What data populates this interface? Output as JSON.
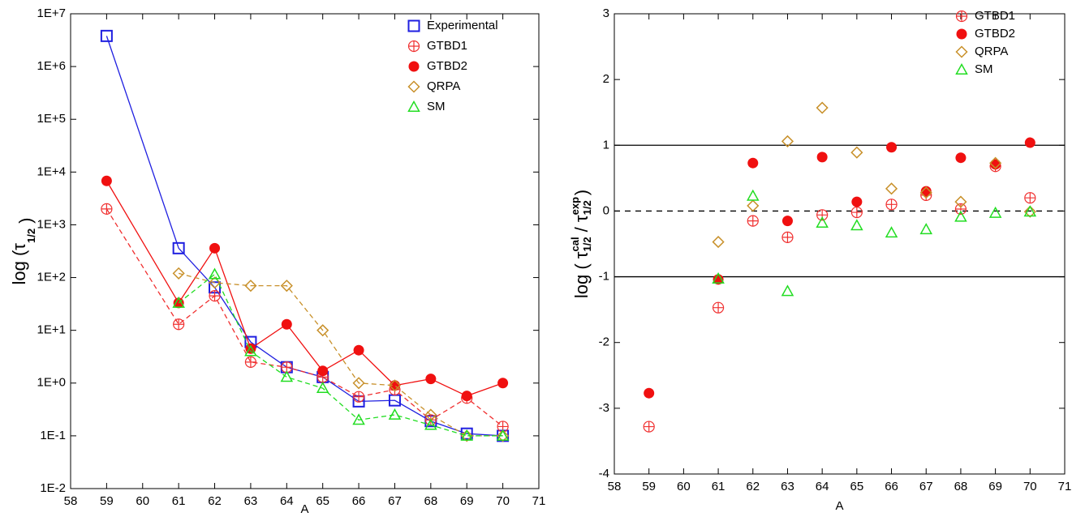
{
  "chart_data": [
    {
      "type": "line",
      "y_log": true,
      "y_label": [
        {
          "text": "log ("
        },
        {
          "text": "τ"
        },
        {
          "text": "1/2",
          "pos": "sub"
        },
        {
          "text": " )"
        }
      ],
      "x_label": "A",
      "x": [
        59,
        61,
        62,
        63,
        64,
        65,
        66,
        67,
        68,
        69,
        70
      ],
      "xlim": [
        58,
        71
      ],
      "xticks": [
        58,
        59,
        60,
        61,
        62,
        63,
        64,
        65,
        66,
        67,
        68,
        69,
        70,
        71
      ],
      "ylim": [
        0.01,
        10000000
      ],
      "yticks": [
        {
          "value": 0.01,
          "label": "1E-2"
        },
        {
          "value": 0.1,
          "label": "1E-1"
        },
        {
          "value": 1,
          "label": "1E+0"
        },
        {
          "value": 10,
          "label": "1E+1"
        },
        {
          "value": 100,
          "label": "1E+2"
        },
        {
          "value": 1000,
          "label": "1E+3"
        },
        {
          "value": 10000,
          "label": "1E+4"
        },
        {
          "value": 100000,
          "label": "1E+5"
        },
        {
          "value": 1000000,
          "label": "1E+6"
        },
        {
          "value": 10000000,
          "label": "1E+7"
        }
      ],
      "legend": "upper right",
      "series": [
        {
          "name": "Experimental",
          "color": "#1f1fe0",
          "marker": "square",
          "line": "solid",
          "values": [
            3800000,
            360,
            65,
            6,
            2,
            1.3,
            0.45,
            0.47,
            0.19,
            0.11,
            0.1
          ]
        },
        {
          "name": "GTBD1",
          "color": "#f03030",
          "marker": "circle-plus",
          "line": "dashed",
          "values": [
            2000,
            13,
            45,
            2.5,
            2,
            1.3,
            0.55,
            0.75,
            0.2,
            0.52,
            0.15
          ]
        },
        {
          "name": "GTBD2",
          "color": "#f01010",
          "marker": "filled-circle",
          "line": "solid",
          "values": [
            6800,
            33,
            360,
            4.5,
            13,
            1.7,
            4.2,
            0.9,
            1.2,
            0.57,
            1.0
          ]
        },
        {
          "name": "QRPA",
          "color": "#c8902a",
          "marker": "diamond",
          "line": "dashed",
          "values": [
            null,
            120,
            80,
            70,
            70,
            10,
            1.0,
            0.9,
            0.25,
            0.1,
            0.1
          ]
        },
        {
          "name": "SM",
          "color": "#22dd22",
          "marker": "triangle",
          "line": "dashed",
          "values": [
            null,
            33,
            115,
            4,
            1.3,
            0.8,
            0.2,
            0.25,
            0.16,
            0.1,
            0.1
          ]
        }
      ]
    },
    {
      "type": "scatter",
      "y_log": false,
      "y_label": [
        {
          "text": "log ( "
        },
        {
          "text": "τ"
        },
        {
          "text": "cal",
          "pos": "sup"
        },
        {
          "text": "1/2",
          "pos": "sub"
        },
        {
          "text": " / "
        },
        {
          "text": "τ"
        },
        {
          "text": "exp",
          "pos": "sup"
        },
        {
          "text": "1/2",
          "pos": "sub"
        },
        {
          "text": " )"
        }
      ],
      "x_label": "A",
      "x": [
        59,
        61,
        62,
        63,
        64,
        65,
        66,
        67,
        68,
        69,
        70
      ],
      "xlim": [
        58,
        71
      ],
      "xticks": [
        58,
        59,
        60,
        61,
        62,
        63,
        64,
        65,
        66,
        67,
        68,
        69,
        70,
        71
      ],
      "ylim": [
        -4,
        3
      ],
      "yticks": [
        -4,
        -3,
        -2,
        -1,
        0,
        1,
        2,
        3
      ],
      "hlines": [
        {
          "value": 1,
          "dash": false
        },
        {
          "value": 0,
          "dash": true
        },
        {
          "value": -1,
          "dash": false
        }
      ],
      "legend": "upper right",
      "series": [
        {
          "name": "GTBD1",
          "color": "#f03030",
          "marker": "circle-plus",
          "line": "none",
          "values": [
            -3.28,
            -1.47,
            -0.15,
            -0.4,
            -0.06,
            -0.02,
            0.1,
            0.24,
            0.03,
            0.68,
            0.2
          ]
        },
        {
          "name": "GTBD2",
          "color": "#f01010",
          "marker": "filled-circle",
          "line": "none",
          "values": [
            -2.77,
            -1.04,
            0.73,
            -0.15,
            0.82,
            0.14,
            0.97,
            0.3,
            0.81,
            0.71,
            1.04
          ]
        },
        {
          "name": "QRPA",
          "color": "#c8902a",
          "marker": "diamond",
          "line": "none",
          "values": [
            null,
            -0.47,
            0.08,
            1.06,
            1.57,
            0.89,
            0.34,
            0.28,
            0.14,
            0.73,
            -0.01
          ]
        },
        {
          "name": "SM",
          "color": "#22dd22",
          "marker": "triangle",
          "line": "none",
          "values": [
            null,
            -1.03,
            0.23,
            -1.22,
            -0.18,
            -0.22,
            -0.33,
            -0.28,
            -0.09,
            -0.03,
            -0.01
          ]
        }
      ]
    }
  ]
}
